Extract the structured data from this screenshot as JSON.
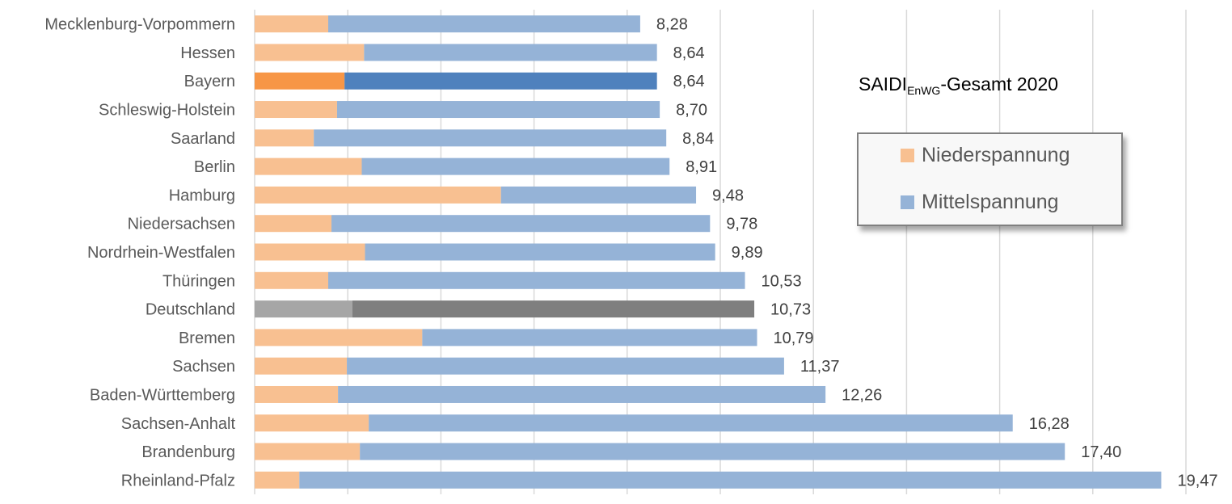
{
  "chart_data": {
    "type": "bar",
    "orientation": "horizontal",
    "stacked": true,
    "title": "SAIDI_EnWG-Gesamt 2020",
    "title_parts": {
      "main": "SAIDI",
      "subscript": "EnWG",
      "rest": "-Gesamt 2020"
    },
    "xlabel": "",
    "ylabel": "",
    "xlim": [
      0,
      20
    ],
    "grid_step": 2,
    "grid": true,
    "legend_position": "right",
    "categories": [
      "Mecklenburg-Vorpommern",
      "Hessen",
      "Bayern",
      "Schleswig-Holstein",
      "Saarland",
      "Berlin",
      "Hamburg",
      "Niedersachsen",
      "Nordrhein-Westfalen",
      "Thüringen",
      "Deutschland",
      "Bremen",
      "Sachsen",
      "Baden-Württemberg",
      "Sachsen-Anhalt",
      "Brandenburg",
      "Rheinland-Pfalz"
    ],
    "series": [
      {
        "name": "Niederspannung",
        "color": "#f8c091",
        "values": [
          1.58,
          2.35,
          1.93,
          1.77,
          1.27,
          2.3,
          5.29,
          1.65,
          2.37,
          1.58,
          2.1,
          3.6,
          1.98,
          1.79,
          2.45,
          2.26,
          0.96
        ]
      },
      {
        "name": "Mittelspannung",
        "color": "#95b3d7",
        "values": [
          6.7,
          6.29,
          6.71,
          6.93,
          7.57,
          6.61,
          4.19,
          8.13,
          7.52,
          8.95,
          8.63,
          7.19,
          9.39,
          10.47,
          13.83,
          15.14,
          18.51
        ]
      }
    ],
    "totals": [
      8.28,
      8.64,
      8.64,
      8.7,
      8.84,
      8.91,
      9.48,
      9.78,
      9.89,
      10.53,
      10.73,
      10.79,
      11.37,
      12.26,
      16.28,
      17.4,
      19.47
    ],
    "total_labels": [
      "8,28",
      "8,64",
      "8,64",
      "8,70",
      "8,84",
      "8,91",
      "9,48",
      "9,78",
      "9,89",
      "10,53",
      "10,73",
      "10,79",
      "11,37",
      "12,26",
      "16,28",
      "17,40",
      "19,47"
    ],
    "highlights": {
      "Bayern": {
        "Niederspannung": "#f79646",
        "Mittelspannung": "#4f81bd"
      },
      "Deutschland": {
        "Niederspannung": "#a6a6a6",
        "Mittelspannung": "#7f7f7f"
      }
    }
  },
  "legend": {
    "items": [
      {
        "label": "Niederspannung",
        "color": "#f8c091"
      },
      {
        "label": "Mittelspannung",
        "color": "#95b3d7"
      }
    ]
  }
}
